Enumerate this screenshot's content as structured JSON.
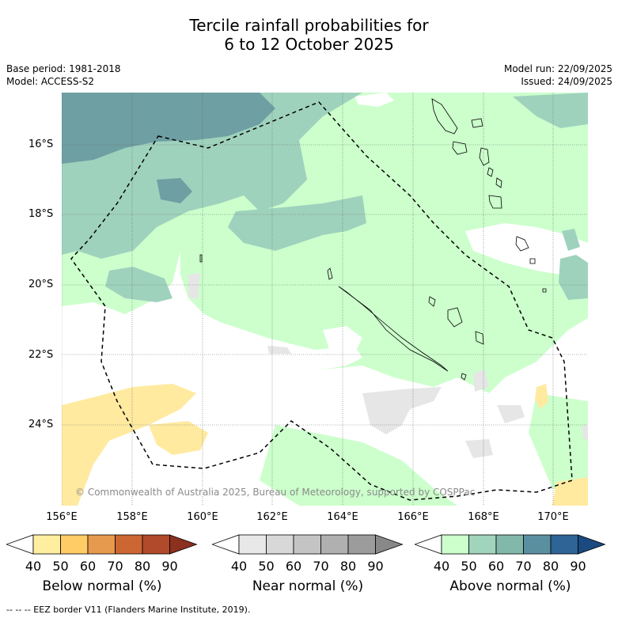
{
  "title_line1": "Tercile rainfall probabilities for",
  "title_line2": "6 to 12 October 2025",
  "base_period": "Base period: 1981-2018",
  "model": "Model: ACCESS-S2",
  "model_run": "Model run: 22/09/2025",
  "issued": "Issued: 24/09/2025",
  "copyright": "© Commonwealth of Australia 2025, Bureau of Meteorology, supported by COSPPac",
  "lat_labels": [
    "16°S",
    "18°S",
    "20°S",
    "22°S",
    "24°S"
  ],
  "lon_labels": [
    "156°E",
    "158°E",
    "160°E",
    "162°E",
    "164°E",
    "166°E",
    "168°E",
    "170°E"
  ],
  "colorbars": [
    {
      "title": "Below normal (%)",
      "ticks": [
        "40",
        "50",
        "60",
        "70",
        "80",
        "90"
      ],
      "colors": [
        "#ffffff",
        "#ffeea0",
        "#ffcc66",
        "#e69a4d",
        "#cc6633",
        "#b04a2a",
        "#8c3020"
      ]
    },
    {
      "title": "Near normal (%)",
      "ticks": [
        "40",
        "50",
        "60",
        "70",
        "80",
        "90"
      ],
      "colors": [
        "#ffffff",
        "#e8e8e8",
        "#d8d8d8",
        "#c4c4c4",
        "#b0b0b0",
        "#9c9c9c",
        "#888888"
      ]
    },
    {
      "title": "Above normal (%)",
      "ticks": [
        "40",
        "50",
        "60",
        "70",
        "80",
        "90"
      ],
      "colors": [
        "#ffffff",
        "#ccffcc",
        "#a0d4bb",
        "#82b8aa",
        "#5a8fa0",
        "#2e6496",
        "#1a4a80"
      ]
    }
  ],
  "footnote": "--  --  -- EEZ border V11 (Flanders Marine Institute, 2019).",
  "map_colors": {
    "above_50": "#ccffcc",
    "above_60": "#9fd2bd",
    "above_70": "#6e9fa2",
    "below_50": "#ffeaa0",
    "near_50": "#e6e6e6",
    "land_outline": "#000000"
  }
}
